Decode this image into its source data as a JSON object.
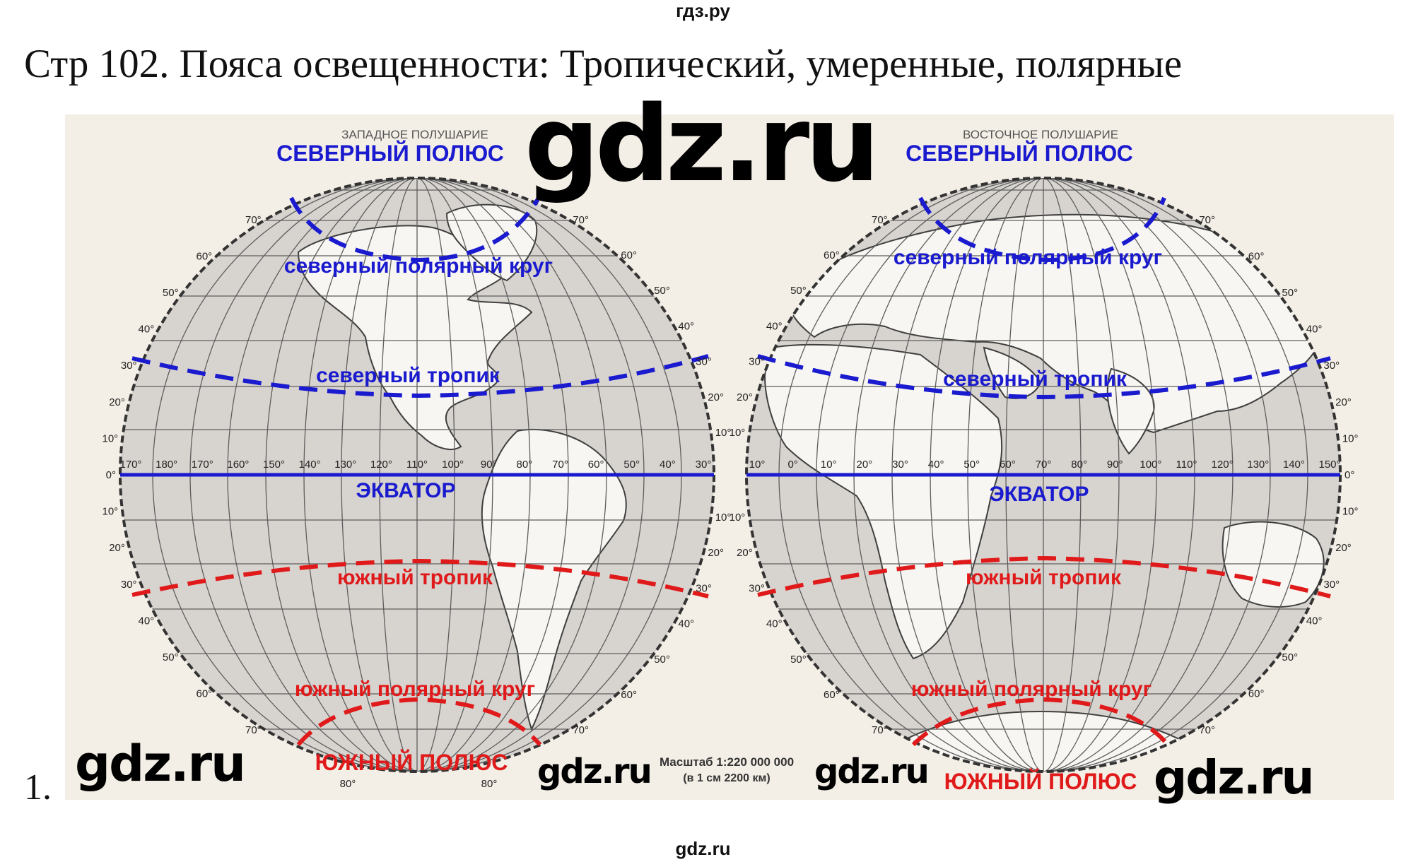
{
  "site_top": "гдз.ру",
  "heading": "Стр 102. Пояса освещенности: Тропический, умеренные, полярные",
  "item_number": "1.",
  "site_bottom": "gdz.ru",
  "watermarks": [
    "gdz.ru",
    "gdz.ru",
    "gdz.ru",
    "gdz.ru",
    "gdz.ru"
  ],
  "map": {
    "west": {
      "title": "ЗАПАДНОЕ ПОЛУШАРИЕ",
      "north_pole": "СЕВЕРНЫЙ ПОЛЮС",
      "arctic_circle": "северный полярный круг",
      "tropic_north": "северный тропик",
      "equator": "ЭКВАТОР",
      "tropic_south": "южный тропик",
      "antarctic_circle": "южный полярный круг",
      "south_pole": "ЮЖНЫЙ ПОЛЮС",
      "equator_ticks": [
        "170°",
        "180°",
        "170°",
        "160°",
        "150°",
        "140°",
        "130°",
        "120°",
        "110°",
        "100°",
        "90°",
        "80°",
        "70°",
        "60°",
        "50°",
        "40°",
        "30°"
      ],
      "left_lat_ticks": [
        "70°",
        "60°",
        "50°",
        "40°",
        "30°",
        "20°",
        "10°",
        "0°",
        "10°",
        "20°",
        "30°",
        "40°",
        "50°",
        "60°",
        "70°"
      ],
      "right_lat_ticks": [
        "70°",
        "60°",
        "50°",
        "40°",
        "30°",
        "20°",
        "10°",
        "10°",
        "20°",
        "30°",
        "40°",
        "50°",
        "60°",
        "70°"
      ],
      "bottom_ticks": [
        "80°",
        "80°"
      ]
    },
    "east": {
      "title": "ВОСТОЧНОЕ ПОЛУШАРИЕ",
      "north_pole": "СЕВЕРНЫЙ ПОЛЮС",
      "arctic_circle": "северный полярный круг",
      "tropic_north": "северный тропик",
      "equator": "ЭКВАТОР",
      "tropic_south": "южный тропик",
      "antarctic_circle": "южный полярный круг",
      "south_pole": "ЮЖНЫЙ ПОЛЮС",
      "equator_ticks": [
        "10°",
        "0°",
        "10°",
        "20°",
        "30°",
        "40°",
        "50°",
        "60°",
        "70°",
        "80°",
        "90°",
        "100°",
        "110°",
        "120°",
        "130°",
        "140°",
        "150°"
      ],
      "left_lat_ticks": [
        "70°",
        "60°",
        "50°",
        "40°",
        "30°",
        "20°",
        "10°",
        "10°",
        "20°",
        "30°",
        "40°",
        "50°",
        "60°",
        "70°"
      ],
      "right_lat_ticks": [
        "70°",
        "60°",
        "50°",
        "40°",
        "30°",
        "20°",
        "10°",
        "0°",
        "10°",
        "20°",
        "30°",
        "40°",
        "50°",
        "60°",
        "70°"
      ]
    },
    "scale_text": "Масштаб 1:220 000 000",
    "scale_sub": "(в 1 см 2200 км)",
    "colors": {
      "background": "#f4efe6",
      "globe_fill": "#d7d3cf",
      "land_fill": "#f7f6f2",
      "grid": "#5e5e5e",
      "north_lines": "#1a1acf",
      "equator": "#1a1acf",
      "south_lines": "#e01a1a",
      "text_dark": "#222222"
    }
  }
}
